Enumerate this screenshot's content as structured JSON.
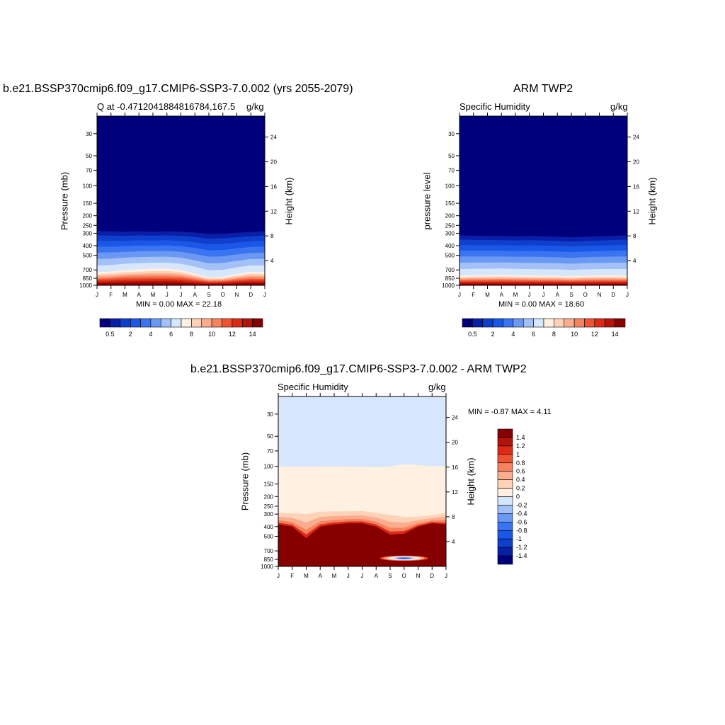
{
  "colors": {
    "abs_levels": [
      "#00007d",
      "#0a1fa8",
      "#0f3fcd",
      "#1b57e6",
      "#3a74f0",
      "#6b98f3",
      "#a3c1f7",
      "#d6e6fc",
      "#fff0e2",
      "#fdd2b8",
      "#f9ad8e",
      "#f6825f",
      "#ee5332",
      "#dc2a15",
      "#b4130a",
      "#870000"
    ],
    "diff_levels": [
      "#00007d",
      "#0a1fa8",
      "#0f3fcd",
      "#1b57e6",
      "#3a74f0",
      "#6b98f3",
      "#a3c1f7",
      "#d6e6fc",
      "#fff0e2",
      "#fdd2b8",
      "#f9ad8e",
      "#f6825f",
      "#ee5332",
      "#dc2a15",
      "#b4130a",
      "#870000"
    ]
  },
  "chart_data": [
    {
      "type": "heatmap",
      "title": "b.e21.BSSP370cmip6.f09_g17.CMIP6-SSP3-7.0.002 (yrs 2055-2079)",
      "subtitle_left": "Q at -0.4712041884816784,167.5",
      "subtitle_right": "g/kg",
      "ylabel": "Pressure (mb)",
      "ylabel_right": "Height (km)",
      "months": [
        "J",
        "F",
        "M",
        "A",
        "M",
        "J",
        "J",
        "A",
        "S",
        "O",
        "N",
        "D",
        "J"
      ],
      "pressure_ticks": [
        30,
        50,
        70,
        100,
        150,
        200,
        250,
        300,
        400,
        500,
        700,
        850,
        1000
      ],
      "height_ticks": [
        24,
        20,
        16,
        12,
        8,
        4
      ],
      "ylim": [
        20,
        1000
      ],
      "min": "0.00",
      "max": "22.18",
      "min_label": "MIN =   0.00 MAX =  22.18",
      "colorbar_ticks": [
        "0.5",
        "2",
        "4",
        "6",
        "8",
        "10",
        "12",
        "14"
      ],
      "contour_levels": [
        0.5,
        1,
        1.5,
        2,
        3,
        4,
        5,
        6,
        7,
        8,
        9,
        10,
        11,
        12,
        13,
        14
      ],
      "moist_top_hpa": [
        285,
        287,
        290,
        287,
        290,
        287,
        290,
        295,
        305,
        303,
        297,
        292,
        285
      ],
      "warm_top_hpa": [
        740,
        725,
        700,
        690,
        680,
        680,
        700,
        760,
        830,
        820,
        770,
        730,
        740
      ]
    },
    {
      "type": "heatmap",
      "title": "ARM TWP2",
      "subtitle_left": "Specific Humidity",
      "subtitle_right": "g/kg",
      "ylabel": "pressure level",
      "ylabel_right": "Height (km)",
      "months": [
        "J",
        "F",
        "M",
        "A",
        "M",
        "J",
        "J",
        "A",
        "S",
        "O",
        "N",
        "D",
        "J"
      ],
      "pressure_ticks": [
        30,
        50,
        70,
        100,
        150,
        200,
        250,
        300,
        400,
        500,
        700,
        850,
        1000
      ],
      "height_ticks": [
        24,
        20,
        16,
        12,
        8,
        4
      ],
      "ylim": [
        20,
        1000
      ],
      "min": "0.00",
      "max": "18.60",
      "min_label": "MIN =   0.00 MAX =  18.60",
      "colorbar_ticks": [
        "0.5",
        "2",
        "4",
        "6",
        "8",
        "10",
        "12",
        "14"
      ],
      "contour_levels": [
        0.5,
        1,
        1.5,
        2,
        3,
        4,
        5,
        6,
        7,
        8,
        9,
        10,
        11,
        12,
        13,
        14
      ],
      "moist_top_hpa": [
        315,
        318,
        318,
        320,
        322,
        320,
        322,
        325,
        330,
        325,
        322,
        318,
        315
      ],
      "warm_top_hpa": [
        800,
        790,
        790,
        785,
        790,
        795,
        800,
        800,
        810,
        800,
        795,
        795,
        800
      ]
    },
    {
      "type": "heatmap",
      "title": "b.e21.BSSP370cmip6.f09_g17.CMIP6-SSP3-7.0.002 - ARM TWP2",
      "subtitle_left": "Specific Humidity",
      "subtitle_right": "g/kg",
      "ylabel": "Pressure (mb)",
      "ylabel_right": "Height (km)",
      "months": [
        "J",
        "F",
        "M",
        "A",
        "M",
        "J",
        "J",
        "A",
        "S",
        "O",
        "N",
        "D",
        "J"
      ],
      "pressure_ticks": [
        30,
        50,
        70,
        100,
        150,
        200,
        250,
        300,
        400,
        500,
        700,
        850,
        1000
      ],
      "height_ticks": [
        24,
        20,
        16,
        12,
        8,
        4
      ],
      "ylim": [
        20,
        1000
      ],
      "min": "-0.87",
      "max": "4.11",
      "min_label": "MIN =  -0.87 MAX =   4.11",
      "colorbar_labels": [
        "1.4",
        "1.2",
        "1",
        "0.8",
        "0.6",
        "0.4",
        "0.2",
        "0",
        "-0.2",
        "-0.4",
        "-0.6",
        "-0.8",
        "-1",
        "-1.2",
        "-1.4"
      ],
      "contour_levels": [
        -1.4,
        -1.2,
        -1,
        -0.8,
        -0.6,
        -0.4,
        -0.2,
        0,
        0.2,
        0.4,
        0.6,
        0.8,
        1,
        1.2,
        1.4
      ],
      "zero_top_hpa": [
        100,
        100,
        101,
        100,
        100,
        100,
        101,
        102,
        100,
        95,
        97,
        99,
        100
      ],
      "pos_mid_top_hpa": [
        290,
        295,
        300,
        285,
        282,
        282,
        280,
        290,
        305,
        320,
        318,
        310,
        290
      ],
      "pos_max_top_hpa": [
        380,
        400,
        520,
        400,
        380,
        370,
        370,
        400,
        480,
        470,
        400,
        370,
        380
      ],
      "negative_cell": {
        "month_start": 7.3,
        "month_end": 10.7,
        "hpa_top": 780,
        "hpa_bottom": 880,
        "min": -0.87
      }
    }
  ]
}
